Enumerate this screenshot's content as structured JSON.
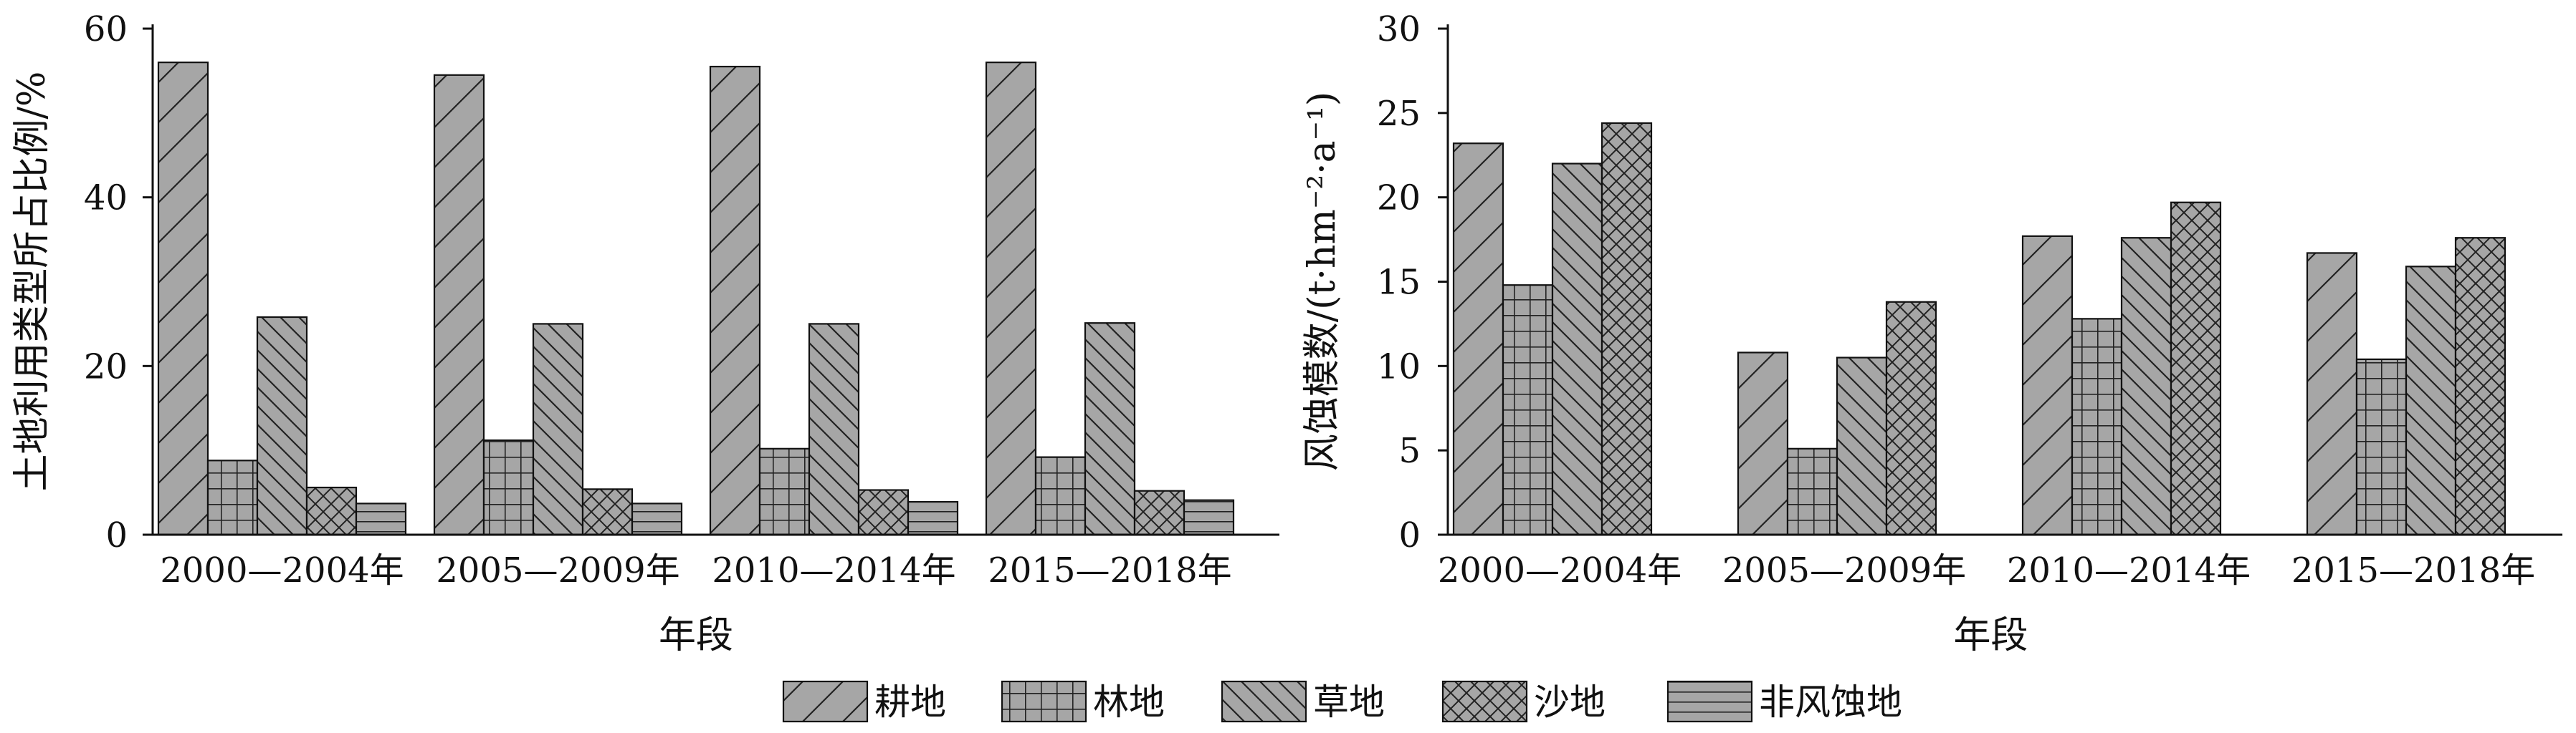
{
  "chart_data": [
    {
      "type": "bar",
      "categories": [
        "2000—2004年",
        "2005—2009年",
        "2010—2014年",
        "2015—2018年"
      ],
      "series": [
        {
          "name": "耕地",
          "values": [
            56,
            54.5,
            55.5,
            56
          ]
        },
        {
          "name": "林地",
          "values": [
            8.8,
            11.2,
            10.2,
            9.2
          ]
        },
        {
          "name": "草地",
          "values": [
            25.8,
            25,
            25,
            25.1
          ]
        },
        {
          "name": "沙地",
          "values": [
            5.6,
            5.4,
            5.3,
            5.2
          ]
        },
        {
          "name": "非风蚀地",
          "values": [
            3.7,
            3.7,
            3.9,
            4.1
          ]
        }
      ],
      "xlabel": "年段",
      "ylabel": "土地利用类型所占比例/%",
      "ylim": [
        0,
        60
      ],
      "yticks": [
        "0",
        "20",
        "40",
        "60"
      ],
      "grid": false
    },
    {
      "type": "bar",
      "categories": [
        "2000—2004年",
        "2005—2009年",
        "2010—2014年",
        "2015—2018年"
      ],
      "series": [
        {
          "name": "耕地",
          "values": [
            23.2,
            10.8,
            17.7,
            16.7
          ]
        },
        {
          "name": "林地",
          "values": [
            14.8,
            5.1,
            12.8,
            10.4
          ]
        },
        {
          "name": "草地",
          "values": [
            22,
            10.5,
            17.6,
            15.9
          ]
        },
        {
          "name": "沙地",
          "values": [
            24.4,
            13.8,
            19.7,
            17.6
          ]
        }
      ],
      "xlabel": "年段",
      "ylabel": "风蚀模数/(t·hm⁻²·a⁻¹)",
      "ylim": [
        0,
        30
      ],
      "yticks": [
        "0",
        "5",
        "10",
        "15",
        "20",
        "25",
        "30"
      ],
      "grid": false
    }
  ],
  "legend": {
    "placement": "bottom-center",
    "items": [
      {
        "name": "耕地",
        "pattern": "diagonal-forward"
      },
      {
        "name": "林地",
        "pattern": "grid"
      },
      {
        "name": "草地",
        "pattern": "diagonal-back"
      },
      {
        "name": "沙地",
        "pattern": "crosshatch"
      },
      {
        "name": "非风蚀地",
        "pattern": "horizontal"
      }
    ]
  },
  "colors": {
    "bar_fill": "#a6a6a6",
    "stroke": "#111111"
  }
}
